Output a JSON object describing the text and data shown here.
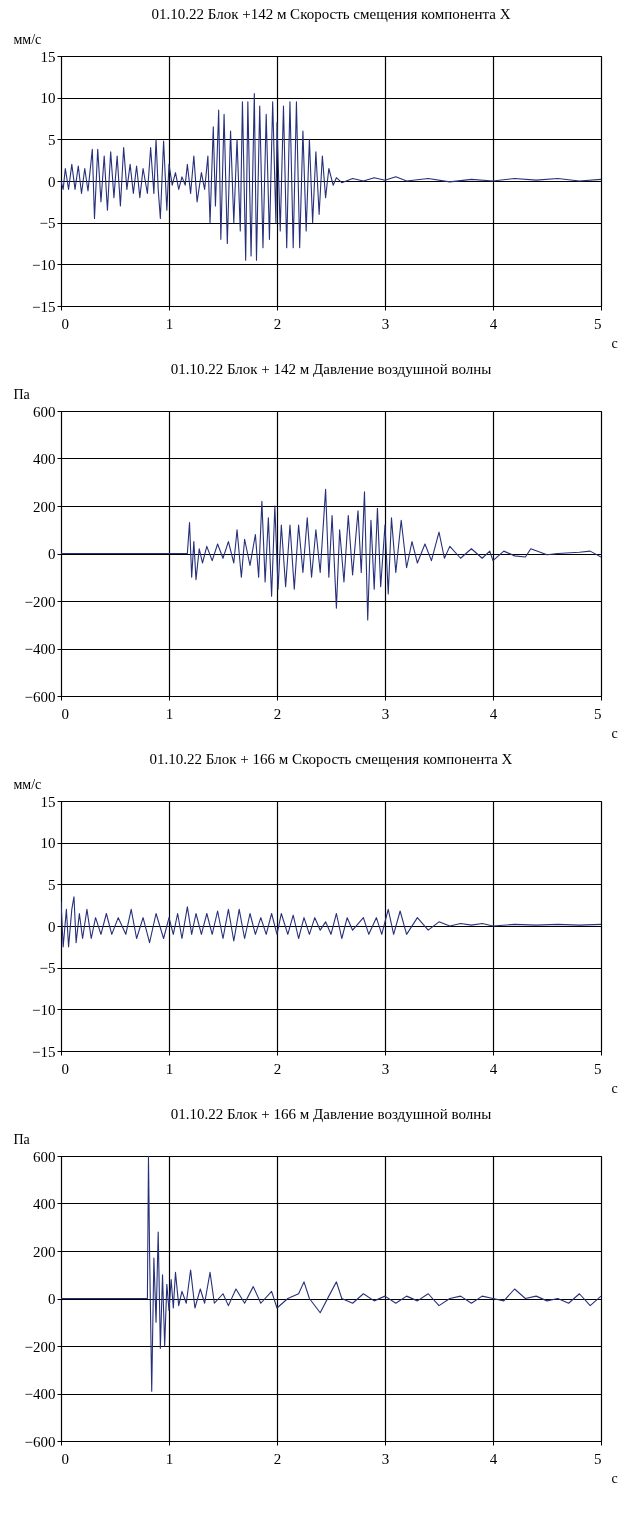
{
  "chart_data": [
    {
      "type": "line",
      "title": "01.10.22  Блок +142 м Скорость смещения компонента X",
      "xlabel": "с",
      "ylabel": "мм/с",
      "xlim": [
        0,
        5
      ],
      "ylim": [
        -15,
        15
      ],
      "xticks": [
        0,
        1,
        2,
        3,
        4,
        5
      ],
      "yticks": [
        -15,
        -10,
        -5,
        0,
        5,
        10,
        15
      ],
      "grid": true,
      "series": [
        {
          "color": "#27307a",
          "x": [
            0,
            0.02,
            0.04,
            0.07,
            0.1,
            0.13,
            0.16,
            0.19,
            0.22,
            0.25,
            0.29,
            0.31,
            0.34,
            0.37,
            0.4,
            0.43,
            0.46,
            0.49,
            0.52,
            0.55,
            0.58,
            0.61,
            0.64,
            0.67,
            0.7,
            0.73,
            0.76,
            0.8,
            0.83,
            0.86,
            0.88,
            0.9,
            0.92,
            0.95,
            0.98,
            1.0,
            1.03,
            1.06,
            1.09,
            1.12,
            1.15,
            1.17,
            1.2,
            1.23,
            1.26,
            1.3,
            1.33,
            1.36,
            1.38,
            1.41,
            1.43,
            1.46,
            1.48,
            1.51,
            1.54,
            1.57,
            1.6,
            1.63,
            1.66,
            1.68,
            1.71,
            1.73,
            1.76,
            1.79,
            1.81,
            1.84,
            1.87,
            1.9,
            1.93,
            1.96,
            1.99,
            2.0,
            2.03,
            2.06,
            2.09,
            2.12,
            2.15,
            2.18,
            2.21,
            2.24,
            2.27,
            2.3,
            2.33,
            2.36,
            2.39,
            2.42,
            2.45,
            2.48,
            2.52,
            2.55,
            2.6,
            2.7,
            2.8,
            2.9,
            3.0,
            3.1,
            3.2,
            3.4,
            3.6,
            3.8,
            4.0,
            4.2,
            4.4,
            4.6,
            4.8,
            5.0
          ],
          "values": [
            0,
            -1,
            1.5,
            -1,
            2,
            -1,
            1.8,
            -1.5,
            1.5,
            -1.2,
            3.8,
            -4.5,
            3.8,
            -2.5,
            3,
            -3.5,
            3.5,
            -2,
            3,
            -3,
            4,
            -1,
            2,
            -1.5,
            1.8,
            -2,
            1.5,
            -1.5,
            4,
            -1.5,
            5,
            -1,
            -4.5,
            4.8,
            -3.5,
            2,
            -0.5,
            1,
            -1,
            0.5,
            -0.5,
            2,
            -1.5,
            3,
            -2.5,
            1,
            -1,
            3,
            -5,
            6.5,
            -3,
            8.5,
            -7,
            8,
            -7.5,
            6,
            -5,
            5,
            -6,
            9.5,
            -9.5,
            9.5,
            -9,
            10.5,
            -9.5,
            9,
            -8,
            8,
            -7,
            9.5,
            -5,
            7,
            -6,
            9,
            -8,
            9.5,
            -8,
            9.5,
            -8,
            6,
            -6,
            5,
            -5,
            3.5,
            -4,
            3,
            -2,
            1.5,
            -0.5,
            0.4,
            -0.2,
            0.3,
            0,
            0.4,
            0.1,
            0.5,
            0,
            0.3,
            -0.1,
            0.2,
            0,
            0.3,
            0.1,
            0.3,
            0,
            0.2
          ]
        }
      ]
    },
    {
      "type": "line",
      "title": "01.10.22  Блок + 142 м Давление воздушной волны",
      "xlabel": "с",
      "ylabel": "Па",
      "xlim": [
        0,
        5
      ],
      "ylim": [
        -600,
        600
      ],
      "xticks": [
        0,
        1,
        2,
        3,
        4,
        5
      ],
      "yticks": [
        -600,
        -400,
        -200,
        0,
        200,
        400,
        600
      ],
      "grid": true,
      "series": [
        {
          "color": "#27307a",
          "x": [
            0,
            1.17,
            1.19,
            1.21,
            1.23,
            1.25,
            1.28,
            1.31,
            1.35,
            1.4,
            1.45,
            1.5,
            1.55,
            1.6,
            1.63,
            1.67,
            1.7,
            1.75,
            1.8,
            1.83,
            1.86,
            1.89,
            1.92,
            1.95,
            1.98,
            2.01,
            2.04,
            2.08,
            2.12,
            2.16,
            2.2,
            2.24,
            2.28,
            2.32,
            2.36,
            2.4,
            2.45,
            2.48,
            2.51,
            2.55,
            2.58,
            2.62,
            2.66,
            2.7,
            2.75,
            2.78,
            2.81,
            2.84,
            2.87,
            2.9,
            2.93,
            2.96,
            3.0,
            3.03,
            3.06,
            3.1,
            3.15,
            3.2,
            3.25,
            3.3,
            3.37,
            3.43,
            3.5,
            3.55,
            3.6,
            3.7,
            3.8,
            3.9,
            3.97,
            4.0,
            4.1,
            4.2,
            4.3,
            4.35,
            4.5,
            4.6,
            4.8,
            4.9,
            5.0
          ],
          "values": [
            0,
            0,
            130,
            -100,
            50,
            -110,
            20,
            -40,
            30,
            -30,
            40,
            -20,
            50,
            -40,
            100,
            -100,
            60,
            -50,
            80,
            -100,
            220,
            -120,
            150,
            -180,
            200,
            -150,
            120,
            -140,
            120,
            -150,
            120,
            -80,
            150,
            -100,
            100,
            -80,
            270,
            -100,
            160,
            -230,
            100,
            -120,
            160,
            -90,
            180,
            -80,
            260,
            -280,
            140,
            -150,
            190,
            -140,
            120,
            -170,
            150,
            -80,
            140,
            -60,
            50,
            -40,
            40,
            -30,
            90,
            -20,
            30,
            -20,
            20,
            -20,
            10,
            -30,
            10,
            -10,
            -15,
            20,
            -5,
            0,
            5,
            10,
            -15
          ]
        }
      ]
    },
    {
      "type": "line",
      "title": "01.10.22  Блок + 166 м Скорость смещения компонента X",
      "xlabel": "с",
      "ylabel": "мм/с",
      "xlim": [
        0,
        5
      ],
      "ylim": [
        -15,
        15
      ],
      "xticks": [
        0,
        1,
        2,
        3,
        4,
        5
      ],
      "yticks": [
        -15,
        -10,
        -5,
        0,
        5,
        10,
        15
      ],
      "grid": true,
      "series": [
        {
          "color": "#27307a",
          "x": [
            0,
            0.02,
            0.05,
            0.07,
            0.1,
            0.12,
            0.14,
            0.17,
            0.2,
            0.24,
            0.28,
            0.32,
            0.37,
            0.42,
            0.47,
            0.53,
            0.6,
            0.65,
            0.7,
            0.76,
            0.82,
            0.88,
            0.95,
            1.0,
            1.04,
            1.08,
            1.12,
            1.17,
            1.21,
            1.25,
            1.3,
            1.35,
            1.4,
            1.45,
            1.5,
            1.55,
            1.6,
            1.65,
            1.7,
            1.75,
            1.8,
            1.85,
            1.9,
            1.95,
            2.0,
            2.04,
            2.1,
            2.15,
            2.2,
            2.25,
            2.3,
            2.35,
            2.4,
            2.45,
            2.5,
            2.55,
            2.6,
            2.65,
            2.7,
            2.8,
            2.85,
            2.92,
            2.97,
            3.03,
            3.08,
            3.14,
            3.2,
            3.3,
            3.4,
            3.5,
            3.6,
            3.7,
            3.8,
            3.9,
            4.0,
            4.2,
            4.4,
            4.6,
            4.8,
            5.0
          ],
          "values": [
            3,
            -2.5,
            2,
            -2.5,
            2,
            3.5,
            -2,
            1.5,
            -1.5,
            2,
            -1.5,
            1,
            -1,
            1.5,
            -1,
            1,
            -1,
            2,
            -1.5,
            1,
            -2,
            1.5,
            -1.5,
            1,
            -1,
            1.5,
            -1.5,
            2.3,
            -1,
            1.5,
            -1,
            1.5,
            -1,
            1.8,
            -1.5,
            2,
            -1.8,
            2,
            -1.5,
            1.5,
            -1,
            1,
            -1,
            1.5,
            -1,
            1.5,
            -1,
            1.3,
            -1.5,
            1,
            -1,
            1,
            -0.5,
            0.5,
            -1,
            1.5,
            -1.5,
            1,
            -0.5,
            1,
            -1,
            1,
            -1,
            2,
            -1,
            1.8,
            -1,
            1,
            -0.5,
            0.5,
            0,
            0.3,
            0.1,
            0.3,
            0,
            0.2,
            0.1,
            0.2,
            0.1,
            0.2
          ]
        }
      ]
    },
    {
      "type": "line",
      "title": "01.10.22  Блок + 166 м Давление воздушной волны",
      "xlabel": "с",
      "ylabel": "Па",
      "xlim": [
        0,
        5
      ],
      "ylim": [
        -600,
        600
      ],
      "xticks": [
        0,
        1,
        2,
        3,
        4,
        5
      ],
      "yticks": [
        -600,
        -400,
        -200,
        0,
        200,
        400,
        600
      ],
      "grid": true,
      "series": [
        {
          "color": "#27307a",
          "x": [
            0,
            0.8,
            0.81,
            0.82,
            0.84,
            0.86,
            0.88,
            0.9,
            0.92,
            0.94,
            0.96,
            0.98,
            1.0,
            1.02,
            1.04,
            1.06,
            1.09,
            1.12,
            1.16,
            1.2,
            1.24,
            1.29,
            1.33,
            1.38,
            1.42,
            1.5,
            1.55,
            1.62,
            1.7,
            1.78,
            1.85,
            1.95,
            2.0,
            2.1,
            2.2,
            2.25,
            2.3,
            2.4,
            2.48,
            2.55,
            2.6,
            2.7,
            2.8,
            2.9,
            3.0,
            3.1,
            3.2,
            3.3,
            3.4,
            3.5,
            3.6,
            3.7,
            3.8,
            3.9,
            4.0,
            4.1,
            4.2,
            4.3,
            4.4,
            4.5,
            4.6,
            4.7,
            4.8,
            4.9,
            5.0
          ],
          "values": [
            0,
            0,
            600,
            200,
            -390,
            170,
            -100,
            280,
            -210,
            100,
            -200,
            60,
            -50,
            80,
            -40,
            110,
            -30,
            30,
            -20,
            120,
            -40,
            40,
            -20,
            110,
            -20,
            20,
            -30,
            40,
            -20,
            50,
            -20,
            30,
            -40,
            0,
            20,
            70,
            0,
            -60,
            10,
            70,
            0,
            -20,
            20,
            -10,
            10,
            -20,
            10,
            -10,
            20,
            -30,
            0,
            10,
            -20,
            10,
            0,
            -10,
            40,
            0,
            10,
            -10,
            0,
            -20,
            20,
            -30,
            10
          ]
        }
      ]
    }
  ]
}
